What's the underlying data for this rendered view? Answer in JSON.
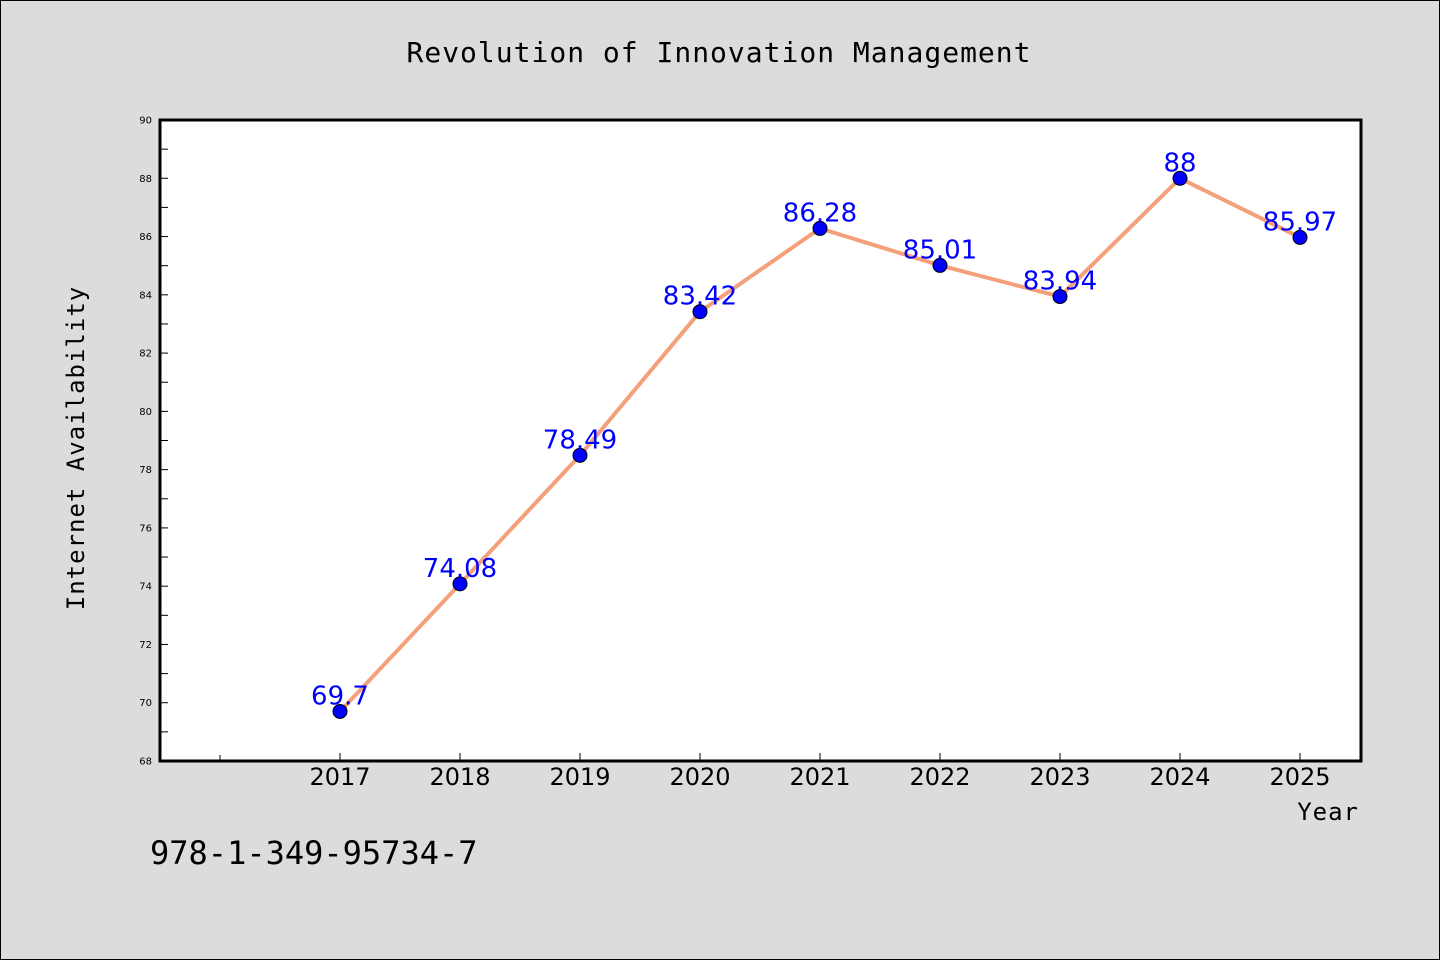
{
  "chart_data": {
    "type": "line",
    "title": "Revolution of Innovation Management",
    "xlabel": "Year",
    "ylabel": "Internet Availability",
    "categories": [
      "2017",
      "2018",
      "2019",
      "2020",
      "2021",
      "2022",
      "2023",
      "2024",
      "2025"
    ],
    "series": [
      {
        "values": [
          69.7,
          74.08,
          78.49,
          83.42,
          86.28,
          85.01,
          83.94,
          88,
          85.97
        ]
      }
    ],
    "data_labels": [
      "69.7",
      "74.08",
      "78.49",
      "83.42",
      "86.28",
      "85.01",
      "83.94",
      "88",
      "85.97"
    ],
    "ylim": [
      68,
      90
    ],
    "y_ticks": [
      68,
      70,
      72,
      74,
      76,
      78,
      80,
      82,
      84,
      86,
      88,
      90
    ],
    "grid": false,
    "line_color": "#f4a07a",
    "marker_color": "#0000ff",
    "label_color": "#0000ff",
    "plot_background": "#ffffff",
    "figure_background": "#dcdcdc"
  },
  "footnote": "978-1-349-95734-7"
}
